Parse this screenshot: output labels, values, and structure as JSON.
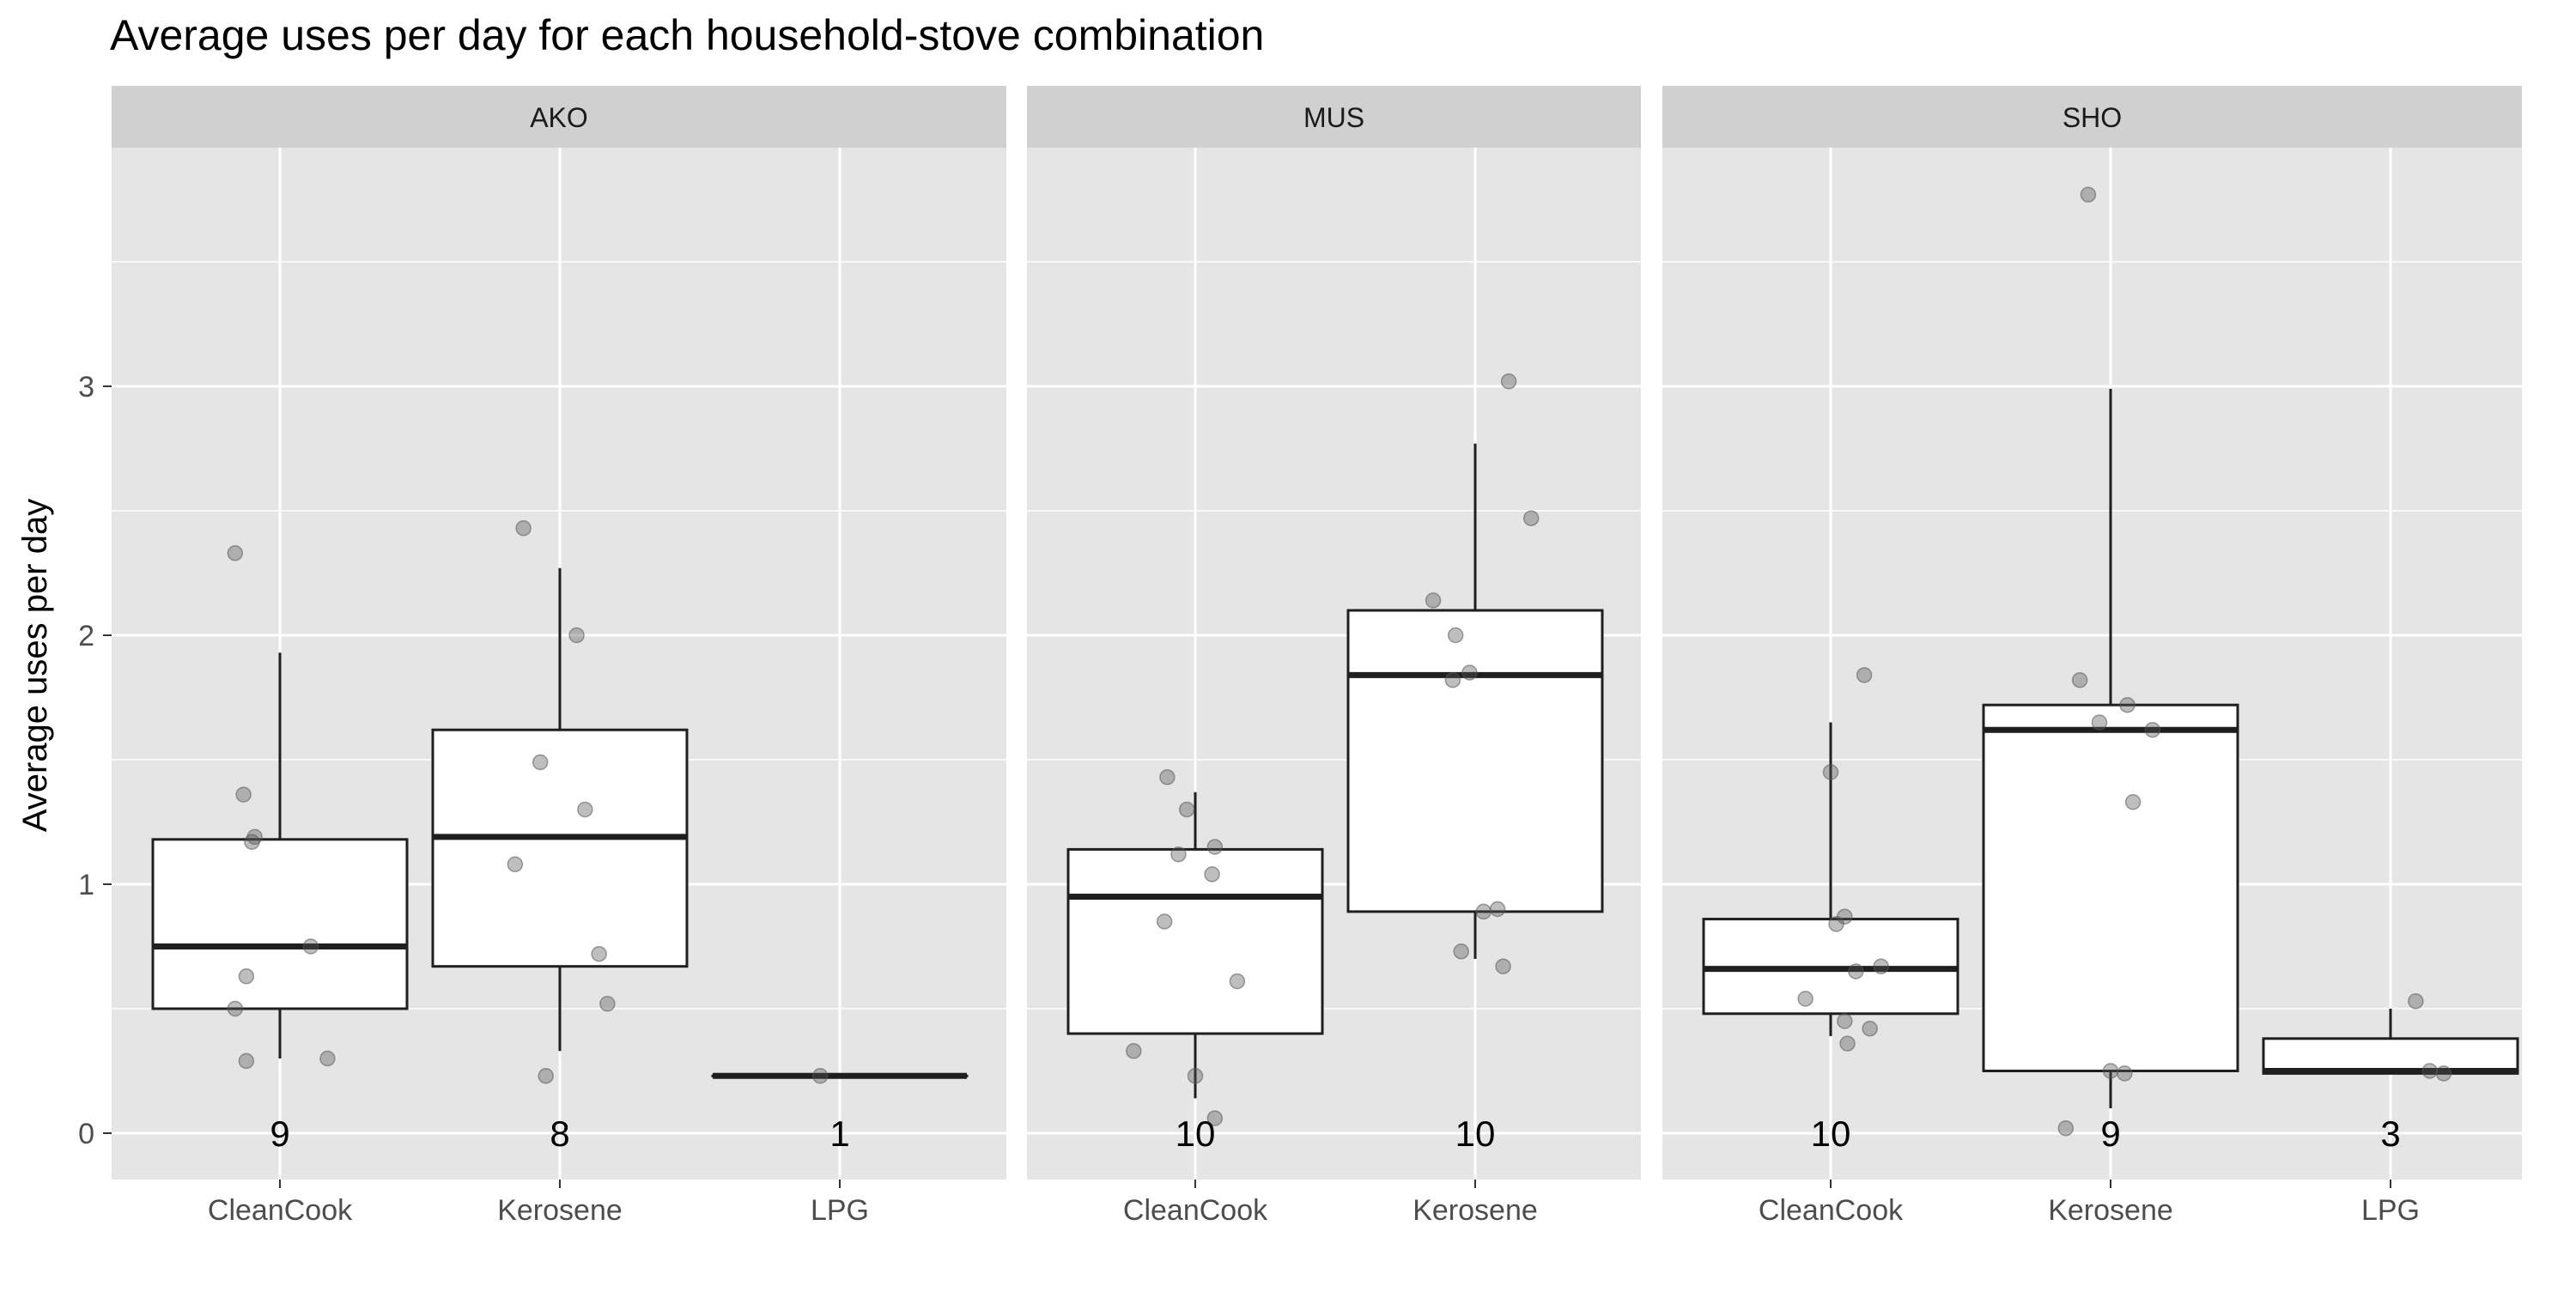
{
  "chart_data": {
    "type": "box",
    "title": "Average uses per day for each household-stove combination",
    "ylabel": "Average uses per day",
    "xlabel": "",
    "ylim": [
      -0.19,
      4.0
    ],
    "yticks": [
      0,
      1,
      2,
      3
    ],
    "grid": true,
    "colors": {
      "panel_bg": "#e5e5e5",
      "grid": "#ffffff",
      "strip_bg": "#d0d0d0",
      "box_fill": "#ffffff",
      "box_line": "#1f1f1f",
      "points": "#555555"
    },
    "facets": [
      {
        "label": "AKO",
        "groups": [
          {
            "category": "CleanCook",
            "count": "9",
            "q1": 0.5,
            "median": 0.75,
            "q3": 1.18,
            "whisker_low": 0.3,
            "whisker_high": 1.93,
            "points": [
              [
                -0.16,
                2.33
              ],
              [
                -0.13,
                1.36
              ],
              [
                -0.1,
                1.17
              ],
              [
                -0.09,
                1.19
              ],
              [
                -0.12,
                0.63
              ],
              [
                -0.16,
                0.5
              ],
              [
                -0.12,
                0.29
              ],
              [
                0.11,
                0.75
              ],
              [
                0.17,
                0.3
              ]
            ]
          },
          {
            "category": "Kerosene",
            "count": "8",
            "q1": 0.67,
            "median": 1.19,
            "q3": 1.62,
            "whisker_low": 0.33,
            "whisker_high": 2.27,
            "points": [
              [
                -0.13,
                2.43
              ],
              [
                0.06,
                2.0
              ],
              [
                -0.07,
                1.49
              ],
              [
                0.09,
                1.3
              ],
              [
                -0.16,
                1.08
              ],
              [
                0.14,
                0.72
              ],
              [
                0.17,
                0.52
              ],
              [
                -0.05,
                0.23
              ]
            ]
          },
          {
            "category": "LPG",
            "count": "1",
            "q1": 0.23,
            "median": 0.23,
            "q3": 0.23,
            "whisker_low": 0.23,
            "whisker_high": 0.23,
            "points": [
              [
                -0.07,
                0.23
              ]
            ]
          }
        ]
      },
      {
        "label": "MUS",
        "groups": [
          {
            "category": "CleanCook",
            "count": "10",
            "q1": 0.4,
            "median": 0.95,
            "q3": 1.14,
            "whisker_low": 0.14,
            "whisker_high": 1.37,
            "points": [
              [
                -0.1,
                1.43
              ],
              [
                -0.03,
                1.3
              ],
              [
                -0.06,
                1.12
              ],
              [
                0.07,
                1.15
              ],
              [
                0.06,
                1.04
              ],
              [
                -0.11,
                0.85
              ],
              [
                0.15,
                0.61
              ],
              [
                -0.22,
                0.33
              ],
              [
                0.0,
                0.23
              ],
              [
                0.07,
                0.06
              ]
            ]
          },
          {
            "category": "Kerosene",
            "count": "10",
            "q1": 0.89,
            "median": 1.84,
            "q3": 2.1,
            "whisker_low": 0.7,
            "whisker_high": 2.77,
            "points": [
              [
                0.12,
                3.02
              ],
              [
                0.2,
                2.47
              ],
              [
                -0.15,
                2.14
              ],
              [
                -0.07,
                2.0
              ],
              [
                -0.02,
                1.85
              ],
              [
                -0.08,
                1.82
              ],
              [
                0.03,
                0.89
              ],
              [
                0.08,
                0.9
              ],
              [
                -0.05,
                0.73
              ],
              [
                0.1,
                0.67
              ]
            ]
          }
        ]
      },
      {
        "label": "SHO",
        "groups": [
          {
            "category": "CleanCook",
            "count": "10",
            "q1": 0.48,
            "median": 0.66,
            "q3": 0.86,
            "whisker_low": 0.39,
            "whisker_high": 1.65,
            "points": [
              [
                0.12,
                1.84
              ],
              [
                0.0,
                1.45
              ],
              [
                0.05,
                0.87
              ],
              [
                0.02,
                0.84
              ],
              [
                -0.09,
                0.54
              ],
              [
                0.09,
                0.65
              ],
              [
                0.18,
                0.67
              ],
              [
                0.05,
                0.45
              ],
              [
                0.14,
                0.42
              ],
              [
                0.06,
                0.36
              ]
            ]
          },
          {
            "category": "Kerosene",
            "count": "9",
            "q1": 0.25,
            "median": 1.62,
            "q3": 1.72,
            "whisker_low": 0.1,
            "whisker_high": 2.99,
            "points": [
              [
                -0.08,
                3.77
              ],
              [
                -0.11,
                1.82
              ],
              [
                -0.04,
                1.65
              ],
              [
                0.06,
                1.72
              ],
              [
                0.08,
                1.33
              ],
              [
                0.15,
                1.62
              ],
              [
                0.0,
                0.25
              ],
              [
                0.05,
                0.24
              ],
              [
                -0.16,
                0.02
              ]
            ]
          },
          {
            "category": "LPG",
            "count": "3",
            "q1": 0.24,
            "median": 0.25,
            "q3": 0.38,
            "whisker_low": 0.24,
            "whisker_high": 0.5,
            "points": [
              [
                0.09,
                0.53
              ],
              [
                0.14,
                0.25
              ],
              [
                0.19,
                0.24
              ]
            ]
          }
        ]
      }
    ]
  }
}
